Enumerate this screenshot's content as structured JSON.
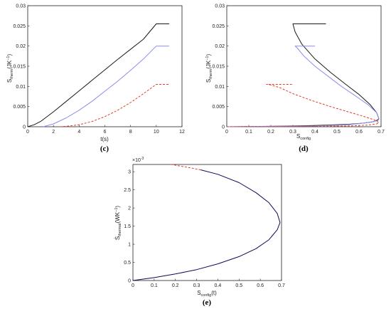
{
  "panels": {
    "c": {
      "label": "(c)"
    },
    "d": {
      "label": "(d)"
    },
    "e": {
      "label": "(e)"
    }
  },
  "chart_data": [
    {
      "id": "c",
      "type": "line",
      "xlabel": "t(s)",
      "ylabel": "S_therm(JK^-1)",
      "xlim": [
        0,
        12
      ],
      "ylim": [
        0,
        0.03
      ],
      "xticks": [
        0,
        2,
        4,
        6,
        8,
        10,
        12
      ],
      "yticks": [
        0,
        0.005,
        0.01,
        0.015,
        0.02,
        0.025,
        0.03
      ],
      "xtick_labels": [
        "0",
        "2",
        "4",
        "6",
        "8",
        "10",
        "12"
      ],
      "ytick_labels": [
        "0",
        "0.005",
        "0.01",
        "0.015",
        "0.02",
        "0.025",
        "0.03"
      ],
      "series": [
        {
          "color": "#1a1a1a",
          "dash": "solid",
          "x": [
            0,
            0.5,
            1,
            2,
            3,
            4,
            5,
            6,
            7,
            8,
            9,
            10,
            10.5,
            11
          ],
          "y": [
            0,
            0.0005,
            0.0013,
            0.0037,
            0.0063,
            0.0089,
            0.0115,
            0.0141,
            0.0167,
            0.0192,
            0.0217,
            0.0255,
            0.0255,
            0.0255
          ]
        },
        {
          "color": "#8c8cf0",
          "dash": "solid",
          "x": [
            1.2,
            2,
            3,
            4,
            5,
            6,
            7,
            8,
            9,
            10,
            10.5,
            11
          ],
          "y": [
            0,
            0.0007,
            0.0022,
            0.0041,
            0.0063,
            0.0088,
            0.0113,
            0.014,
            0.0168,
            0.02,
            0.02,
            0.02
          ]
        },
        {
          "color": "#e0402a",
          "dash": "dashed",
          "x": [
            2.5,
            3,
            4,
            5,
            6,
            7,
            8,
            9,
            10,
            10.5,
            11
          ],
          "y": [
            0,
            0.0001,
            0.0005,
            0.0013,
            0.0025,
            0.0041,
            0.006,
            0.0082,
            0.0105,
            0.0105,
            0.0105
          ]
        }
      ]
    },
    {
      "id": "d",
      "type": "line",
      "xlabel": "S_config",
      "ylabel": "S_therm(JK^-1)",
      "xlim": [
        0,
        0.7
      ],
      "ylim": [
        0,
        0.03
      ],
      "xticks": [
        0,
        0.1,
        0.2,
        0.3,
        0.4,
        0.5,
        0.6,
        0.7
      ],
      "yticks": [
        0,
        0.005,
        0.01,
        0.015,
        0.02,
        0.025,
        0.03
      ],
      "xtick_labels": [
        "0",
        "0.1",
        "0.2",
        "0.3",
        "0.4",
        "0.5",
        "0.6",
        "0.7"
      ],
      "ytick_labels": [
        "0",
        "0.005",
        "0.01",
        "0.015",
        "0.02",
        "0.025",
        "0.03"
      ],
      "series": [
        {
          "color": "#1a1a1a",
          "dash": "solid",
          "x": [
            0,
            0.2,
            0.4,
            0.55,
            0.62,
            0.66,
            0.685,
            0.69,
            0.68,
            0.65,
            0.6,
            0.54,
            0.47,
            0.4,
            0.34,
            0.31,
            0.3,
            0.3,
            0.38,
            0.45
          ],
          "y": [
            0,
            0.0001,
            0.0003,
            0.0006,
            0.0009,
            0.0012,
            0.0016,
            0.002,
            0.0035,
            0.0055,
            0.008,
            0.0105,
            0.0135,
            0.0168,
            0.0205,
            0.0235,
            0.0255,
            0.0255,
            0.0255,
            0.0255
          ]
        },
        {
          "color": "#8c8cf0",
          "dash": "solid",
          "x": [
            0,
            0.2,
            0.4,
            0.55,
            0.62,
            0.67,
            0.69,
            0.68,
            0.64,
            0.58,
            0.52,
            0.46,
            0.4,
            0.35,
            0.32,
            0.31,
            0.35,
            0.4
          ],
          "y": [
            0,
            0.0001,
            0.0002,
            0.0005,
            0.0009,
            0.0013,
            0.002,
            0.0035,
            0.0055,
            0.0078,
            0.01,
            0.0125,
            0.015,
            0.0175,
            0.0195,
            0.02,
            0.02,
            0.02
          ]
        },
        {
          "color": "#e0402a",
          "dash": "dashed",
          "x": [
            0,
            0.2,
            0.4,
            0.55,
            0.64,
            0.68,
            0.69,
            0.67,
            0.62,
            0.55,
            0.47,
            0.38,
            0.3,
            0.24,
            0.19,
            0.18,
            0.23,
            0.3
          ],
          "y": [
            0,
            3e-05,
            0.0001,
            0.0002,
            0.0004,
            0.0007,
            0.001,
            0.0017,
            0.0026,
            0.0037,
            0.005,
            0.0066,
            0.0082,
            0.0097,
            0.0105,
            0.0105,
            0.0105,
            0.0105
          ]
        }
      ]
    },
    {
      "id": "e",
      "type": "line",
      "xlabel": "S_config(t)",
      "ylabel": "Ṡ_thermal(WK^-1)",
      "y_multiplier": "×10^-3",
      "xlim": [
        0,
        0.7
      ],
      "ylim": [
        0,
        3.2
      ],
      "xticks": [
        0,
        0.1,
        0.2,
        0.3,
        0.4,
        0.5,
        0.6,
        0.7
      ],
      "yticks": [
        0,
        0.5,
        1,
        1.5,
        2,
        2.5,
        3
      ],
      "xtick_labels": [
        "0",
        "0.1",
        "0.2",
        "0.3",
        "0.4",
        "0.5",
        "0.6",
        "0.7"
      ],
      "ytick_labels": [
        "0",
        "0.5",
        "1",
        "1.5",
        "2",
        "2.5",
        "3"
      ],
      "series": [
        {
          "color": "#0a0a5a",
          "dash": "solid",
          "x": [
            0,
            0.1,
            0.2,
            0.3,
            0.4,
            0.5,
            0.58,
            0.64,
            0.68,
            0.693,
            0.68,
            0.64,
            0.58,
            0.5,
            0.4,
            0.32
          ],
          "y": [
            0,
            0.08,
            0.18,
            0.3,
            0.46,
            0.66,
            0.88,
            1.12,
            1.4,
            1.6,
            1.85,
            2.15,
            2.42,
            2.7,
            2.93,
            3.05
          ]
        },
        {
          "color": "#e0402a",
          "dash": "dashed",
          "x": [
            0.32,
            0.25,
            0.18
          ],
          "y": [
            3.05,
            3.13,
            3.2
          ]
        }
      ]
    }
  ]
}
